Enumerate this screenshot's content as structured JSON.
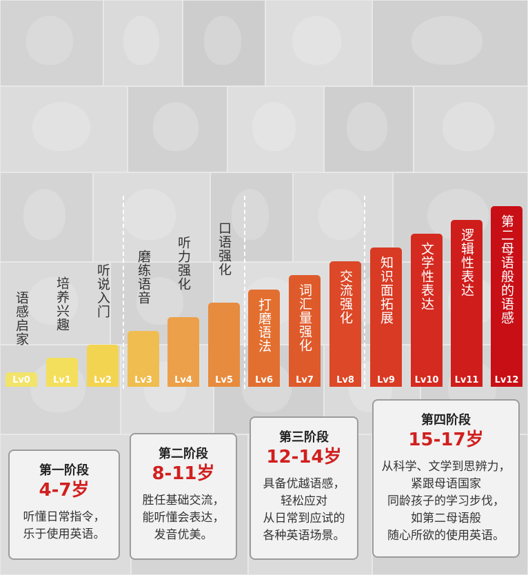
{
  "levels": [
    {
      "lv": "Lv0",
      "label": "语感启家",
      "color": "#f2e36a"
    },
    {
      "lv": "Lv1",
      "label": "培养兴趣",
      "color": "#f4df5c"
    },
    {
      "lv": "Lv2",
      "label": "听说入门",
      "color": "#f3d451"
    },
    {
      "lv": "Lv3",
      "label": "磨练语音",
      "color": "#efbd50"
    },
    {
      "lv": "Lv4",
      "label": "听力强化",
      "color": "#eca04a"
    },
    {
      "lv": "Lv5",
      "label": "口语强化",
      "color": "#e78b3e"
    },
    {
      "lv": "Lv6",
      "label": "打磨语法",
      "color": "#e26f30"
    },
    {
      "lv": "Lv7",
      "label": "词汇量强化",
      "color": "#df5a2b"
    },
    {
      "lv": "Lv8",
      "label": "交流强化",
      "color": "#dc4828"
    },
    {
      "lv": "Lv9",
      "label": "知识面拓展",
      "color": "#d93a24"
    },
    {
      "lv": "Lv10",
      "label": "文学性表达",
      "color": "#d52a1f"
    },
    {
      "lv": "Lv11",
      "label": "逻辑性表达",
      "color": "#cf1d1b"
    },
    {
      "lv": "Lv12",
      "label": "第二母语般的语感",
      "color": "#c80f16"
    }
  ],
  "stages": [
    {
      "title": "第一阶段",
      "age": "4-7岁",
      "desc": [
        "听懂日常指令，",
        "乐于使用英语。"
      ]
    },
    {
      "title": "第二阶段",
      "age": "8-11岁",
      "desc": [
        "胜任基础交流，",
        "能听懂会表达，",
        "发音优美。"
      ]
    },
    {
      "title": "第三阶段",
      "age": "12-14岁",
      "desc": [
        "具备优越语感，",
        "轻松应对",
        "从日常到应试的",
        "各种英语场景。"
      ]
    },
    {
      "title": "第四阶段",
      "age": "15-17岁",
      "desc": [
        "从科学、文学到思辨力，",
        "紧跟母语国家",
        "同龄孩子的学习步伐，",
        "如第二母语般",
        "随心所欲的使用英语。"
      ]
    }
  ]
}
